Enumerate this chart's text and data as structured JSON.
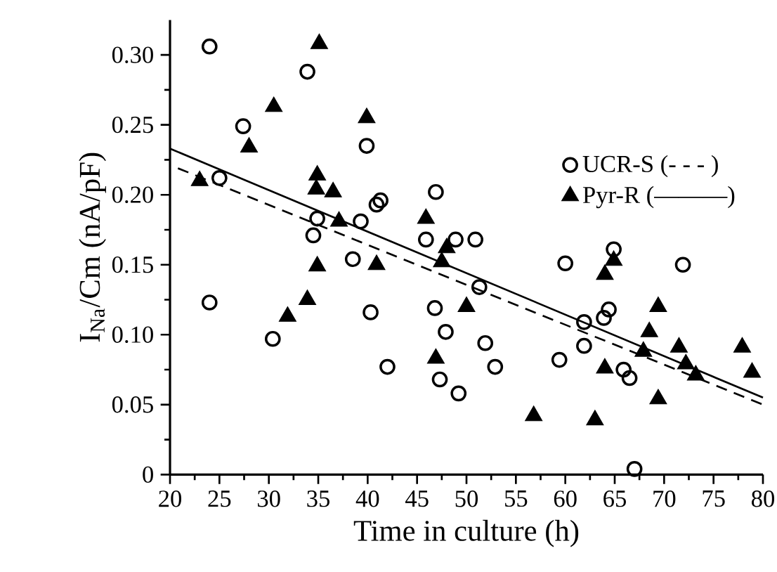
{
  "chart_data": {
    "type": "scatter",
    "xlabel": "Time in culture (h)",
    "ylabel": "I$_{Na}$/Cm (nA/pF)",
    "xlim": [
      20,
      80
    ],
    "ylim": [
      0,
      0.325
    ],
    "xticks": [
      20,
      25,
      30,
      35,
      40,
      45,
      50,
      55,
      60,
      65,
      70,
      75,
      80
    ],
    "yticks": [
      0,
      {
        "value": 0.05,
        "label": "0.05"
      },
      {
        "value": 0.1,
        "label": "0.10"
      },
      {
        "value": 0.15,
        "label": "0.15"
      },
      {
        "value": 0.2,
        "label": "0.20"
      },
      {
        "value": 0.25,
        "label": "0.25"
      },
      {
        "value": 0.3,
        "label": "0.30"
      }
    ],
    "grid": false,
    "legend": "top right",
    "series": [
      {
        "name": "UCR-S (- - - )",
        "color": "#000000",
        "marker": "circle",
        "x": [
          24.0,
          24.0,
          25.0,
          27.4,
          33.9,
          39.9,
          34.9,
          34.5,
          39.3,
          41.3,
          40.9,
          46.9,
          45.9,
          48.9,
          50.9,
          60.0,
          64.9,
          71.9,
          38.5,
          30.4,
          40.3,
          42.0,
          46.8,
          47.9,
          47.3,
          49.2,
          51.3,
          51.9,
          52.9,
          59.4,
          61.9,
          61.9,
          63.9,
          64.4,
          65.9,
          66.5,
          67.0
        ],
        "values": [
          0.306,
          0.123,
          0.212,
          0.249,
          0.288,
          0.235,
          0.183,
          0.171,
          0.181,
          0.196,
          0.193,
          0.202,
          0.168,
          0.168,
          0.168,
          0.151,
          0.161,
          0.15,
          0.154,
          0.097,
          0.116,
          0.077,
          0.119,
          0.102,
          0.068,
          0.058,
          0.134,
          0.094,
          0.077,
          0.082,
          0.109,
          0.092,
          0.112,
          0.118,
          0.075,
          0.069,
          0.004
        ]
      },
      {
        "name": "Pyr-R (———)",
        "color": "#000000",
        "marker": "triangle",
        "x": [
          35.1,
          30.5,
          39.9,
          28.0,
          23.0,
          34.9,
          34.8,
          36.5,
          37.1,
          34.9,
          40.9,
          45.9,
          48.0,
          47.5,
          31.9,
          33.9,
          46.9,
          50.0,
          56.8,
          63.0,
          64.0,
          64.9,
          64.0,
          69.4,
          68.5,
          67.9,
          71.5,
          72.2,
          73.2,
          69.4,
          77.9,
          78.9
        ],
        "values": [
          0.308,
          0.263,
          0.255,
          0.234,
          0.21,
          0.214,
          0.204,
          0.202,
          0.181,
          0.149,
          0.15,
          0.183,
          0.162,
          0.152,
          0.113,
          0.125,
          0.083,
          0.12,
          0.042,
          0.039,
          0.143,
          0.153,
          0.076,
          0.12,
          0.102,
          0.088,
          0.091,
          0.079,
          0.071,
          0.054,
          0.091,
          0.073
        ]
      },
      {
        "type": "line",
        "color": "#000000",
        "line_style": "dashed",
        "x": [
          20.8,
          80
        ],
        "values": [
          0.219,
          0.05
        ]
      },
      {
        "type": "line",
        "color": "#000000",
        "line_style": "solid",
        "x": [
          20,
          80
        ],
        "values": [
          0.233,
          0.055
        ]
      }
    ]
  }
}
